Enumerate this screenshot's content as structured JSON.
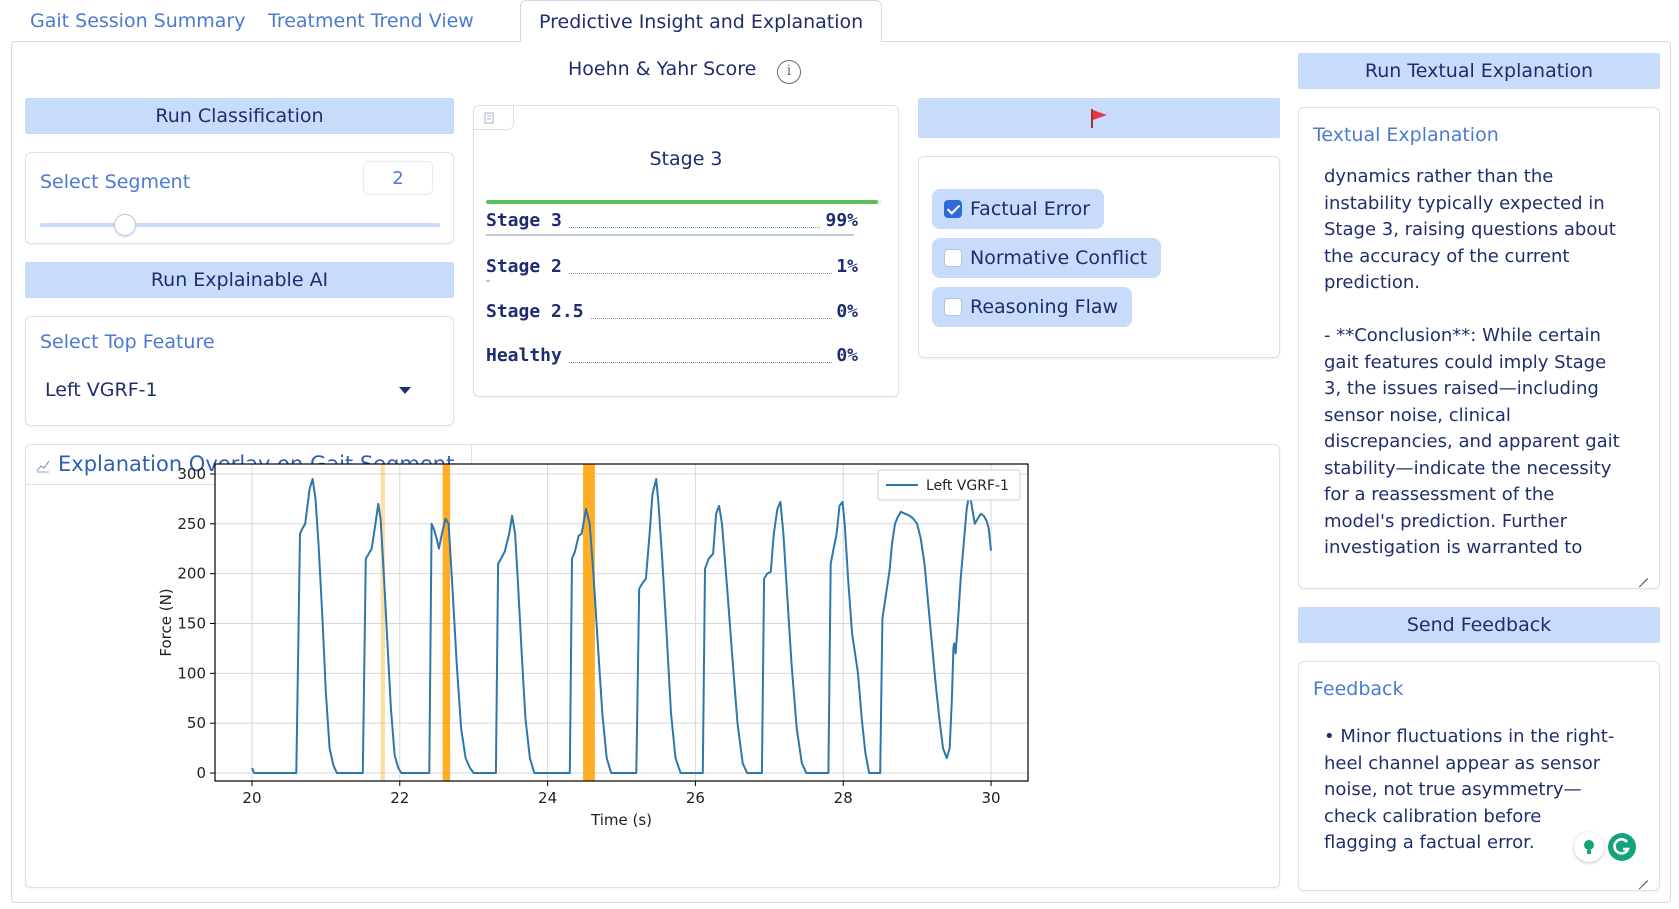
{
  "tabs": [
    {
      "label": "Gait Session Summary"
    },
    {
      "label": "Treatment Trend View"
    },
    {
      "label": "Predictive Insight and Explanation"
    }
  ],
  "left": {
    "run_classification": "Run Classification",
    "segment_label": "Select Segment",
    "segment_value": "2",
    "segment_slider_fraction": 0.2,
    "run_xai": "Run Explainable AI",
    "feature_label": "Select Top Feature",
    "feature_value": "Left VGRF-1"
  },
  "hy": {
    "title": "Hoehn & Yahr Score",
    "info_icon": "info-circle-icon",
    "top_label": "Stage 3",
    "rows": [
      {
        "name": "Stage 3",
        "pct": "99%",
        "frac": 0.99
      },
      {
        "name": "Stage 2",
        "pct": "1%",
        "frac": 0.01
      },
      {
        "name": "Stage 2.5",
        "pct": "0%",
        "frac": 0.0
      },
      {
        "name": "Healthy",
        "pct": "0%",
        "frac": 0.0
      }
    ]
  },
  "flag": {
    "icon": "flag-icon",
    "options": [
      {
        "label": "Factual Error",
        "checked": true
      },
      {
        "label": "Normative Conflict",
        "checked": false
      },
      {
        "label": "Reasoning Flaw",
        "checked": false
      }
    ]
  },
  "overlay": {
    "title": "Explanation Overlay on Gait Segment",
    "icon": "chart-icon"
  },
  "right": {
    "run_text": "Run Textual Explanation",
    "text_label": "Textual Explanation",
    "text_body": "dynamics rather than the\ninstability typically expected in\nStage 3, raising questions about\nthe accuracy of the current\nprediction.\n\n- **Conclusion**: While certain\ngait features could imply Stage\n3, the issues raised—including\nsensor noise, clinical\ndiscrepancies, and apparent gait\nstability—indicate the necessity\nfor a reassessment of the\nmodel's prediction. Further\ninvestigation is warranted to",
    "send_feedback": "Send Feedback",
    "feedback_label": "Feedback",
    "feedback_body": "• Minor fluctuations in the right-\nheel channel appear as sensor\nnoise, not true asymmetry—\ncheck calibration before\nflagging a factual error."
  },
  "chart_data": {
    "type": "line",
    "xlabel": "Time (s)",
    "ylabel": "Force (N)",
    "xlim": [
      19.5,
      30.5
    ],
    "ylim": [
      -8,
      310
    ],
    "xticks": [
      20,
      22,
      24,
      26,
      28,
      30
    ],
    "yticks": [
      0,
      50,
      100,
      150,
      200,
      250,
      300
    ],
    "grid": true,
    "legend": "top-right",
    "series": [
      {
        "name": "Left VGRF-1",
        "color": "#2e77ab",
        "points": [
          [
            20.0,
            5
          ],
          [
            20.03,
            0
          ],
          [
            20.6,
            0
          ],
          [
            20.65,
            240
          ],
          [
            20.68,
            245
          ],
          [
            20.72,
            250
          ],
          [
            20.78,
            285
          ],
          [
            20.82,
            295
          ],
          [
            20.86,
            275
          ],
          [
            20.9,
            230
          ],
          [
            20.95,
            160
          ],
          [
            21.0,
            80
          ],
          [
            21.05,
            25
          ],
          [
            21.1,
            8
          ],
          [
            21.15,
            0
          ],
          [
            21.5,
            0
          ],
          [
            21.54,
            215
          ],
          [
            21.58,
            220
          ],
          [
            21.62,
            225
          ],
          [
            21.67,
            250
          ],
          [
            21.71,
            270
          ],
          [
            21.74,
            255
          ],
          [
            21.78,
            205
          ],
          [
            21.83,
            135
          ],
          [
            21.88,
            65
          ],
          [
            21.93,
            18
          ],
          [
            21.98,
            5
          ],
          [
            22.02,
            0
          ],
          [
            22.4,
            0
          ],
          [
            22.43,
            250
          ],
          [
            22.46,
            245
          ],
          [
            22.5,
            235
          ],
          [
            22.53,
            225
          ],
          [
            22.57,
            240
          ],
          [
            22.62,
            255
          ],
          [
            22.66,
            250
          ],
          [
            22.71,
            190
          ],
          [
            22.77,
            110
          ],
          [
            22.83,
            45
          ],
          [
            22.89,
            15
          ],
          [
            22.95,
            5
          ],
          [
            23.0,
            0
          ],
          [
            23.3,
            0
          ],
          [
            23.33,
            210
          ],
          [
            23.37,
            215
          ],
          [
            23.42,
            222
          ],
          [
            23.48,
            240
          ],
          [
            23.52,
            258
          ],
          [
            23.56,
            240
          ],
          [
            23.6,
            190
          ],
          [
            23.65,
            120
          ],
          [
            23.7,
            55
          ],
          [
            23.76,
            15
          ],
          [
            23.82,
            0
          ],
          [
            24.3,
            0
          ],
          [
            24.33,
            215
          ],
          [
            24.37,
            222
          ],
          [
            24.42,
            238
          ],
          [
            24.46,
            240
          ],
          [
            24.52,
            265
          ],
          [
            24.57,
            250
          ],
          [
            24.62,
            200
          ],
          [
            24.68,
            130
          ],
          [
            24.74,
            60
          ],
          [
            24.8,
            15
          ],
          [
            24.86,
            0
          ],
          [
            25.2,
            0
          ],
          [
            25.24,
            185
          ],
          [
            25.28,
            190
          ],
          [
            25.33,
            195
          ],
          [
            25.38,
            240
          ],
          [
            25.42,
            280
          ],
          [
            25.47,
            295
          ],
          [
            25.5,
            270
          ],
          [
            25.55,
            215
          ],
          [
            25.61,
            140
          ],
          [
            25.67,
            60
          ],
          [
            25.73,
            15
          ],
          [
            25.8,
            0
          ],
          [
            26.1,
            0
          ],
          [
            26.13,
            205
          ],
          [
            26.18,
            215
          ],
          [
            26.24,
            220
          ],
          [
            26.28,
            260
          ],
          [
            26.32,
            268
          ],
          [
            26.36,
            250
          ],
          [
            26.43,
            185
          ],
          [
            26.5,
            115
          ],
          [
            26.57,
            50
          ],
          [
            26.64,
            10
          ],
          [
            26.7,
            0
          ],
          [
            26.9,
            0
          ],
          [
            26.93,
            195
          ],
          [
            26.97,
            200
          ],
          [
            27.02,
            202
          ],
          [
            27.06,
            240
          ],
          [
            27.11,
            265
          ],
          [
            27.15,
            272
          ],
          [
            27.19,
            240
          ],
          [
            27.24,
            180
          ],
          [
            27.3,
            110
          ],
          [
            27.37,
            45
          ],
          [
            27.44,
            10
          ],
          [
            27.5,
            0
          ],
          [
            27.8,
            0
          ],
          [
            27.83,
            210
          ],
          [
            27.87,
            225
          ],
          [
            27.91,
            240
          ],
          [
            27.95,
            268
          ],
          [
            27.99,
            272
          ],
          [
            28.02,
            250
          ],
          [
            28.07,
            190
          ],
          [
            28.12,
            140
          ],
          [
            28.17,
            115
          ],
          [
            28.2,
            100
          ],
          [
            28.25,
            55
          ],
          [
            28.3,
            20
          ],
          [
            28.35,
            0
          ],
          [
            28.5,
            0
          ],
          [
            28.53,
            155
          ],
          [
            28.57,
            175
          ],
          [
            28.6,
            190
          ],
          [
            28.63,
            205
          ],
          [
            28.66,
            230
          ],
          [
            28.7,
            250
          ],
          [
            28.74,
            257
          ],
          [
            28.78,
            262
          ],
          [
            28.84,
            260
          ],
          [
            28.9,
            258
          ],
          [
            28.95,
            255
          ],
          [
            29.0,
            250
          ],
          [
            29.05,
            235
          ],
          [
            29.1,
            210
          ],
          [
            29.15,
            170
          ],
          [
            29.2,
            130
          ],
          [
            29.25,
            90
          ],
          [
            29.3,
            55
          ],
          [
            29.35,
            25
          ],
          [
            29.4,
            15
          ],
          [
            29.44,
            25
          ],
          [
            29.47,
            75
          ],
          [
            29.49,
            125
          ],
          [
            29.5,
            130
          ],
          [
            29.52,
            120
          ],
          [
            29.55,
            150
          ],
          [
            29.59,
            195
          ],
          [
            29.63,
            230
          ],
          [
            29.67,
            265
          ],
          [
            29.71,
            282
          ],
          [
            29.74,
            268
          ],
          [
            29.78,
            250
          ],
          [
            29.82,
            255
          ],
          [
            29.86,
            260
          ],
          [
            29.9,
            258
          ],
          [
            29.94,
            253
          ],
          [
            29.97,
            245
          ],
          [
            30.0,
            223
          ]
        ]
      }
    ],
    "highlights": [
      {
        "x0": 21.74,
        "x1": 21.8,
        "opacity": 0.35
      },
      {
        "x0": 22.58,
        "x1": 22.68,
        "opacity": 0.85
      },
      {
        "x0": 24.48,
        "x1": 24.64,
        "opacity": 0.85
      }
    ]
  }
}
